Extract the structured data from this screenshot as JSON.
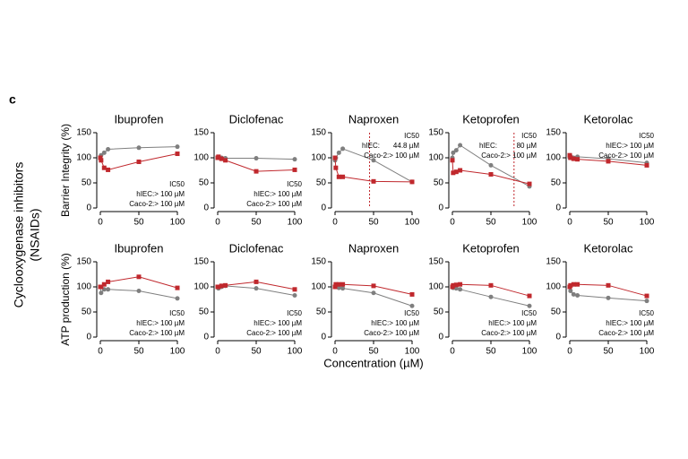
{
  "panel_label": "c",
  "group_label": [
    "Cyclooxygenase inhibitors",
    "(NSAIDs)"
  ],
  "x_label": "Concentration (µM)",
  "chart_data": [
    {
      "type": "line",
      "title": "Ibuprofen",
      "ylabel": "Barrier Integrity (%)",
      "x": [
        0,
        1,
        5,
        10,
        50,
        100
      ],
      "xlim": [
        0,
        100
      ],
      "xticks": [
        0,
        50,
        100
      ],
      "ylim": [
        0,
        150
      ],
      "yticks": [
        0,
        50,
        100,
        150
      ],
      "annotation_corner": "lower right",
      "series": [
        {
          "color": "#7f7f7f",
          "marker": "circle",
          "values": [
            100,
            105,
            110,
            117,
            120,
            122
          ]
        },
        {
          "color": "#c0282d",
          "marker": "square",
          "values": [
            100,
            95,
            80,
            76,
            92,
            108
          ]
        }
      ],
      "annotations": [
        {
          "text": "IC50",
          "color": "#000000"
        },
        {
          "text": "hIEC:> 100 µM",
          "color": "#c0282d"
        },
        {
          "text": "Caco-2:> 100 µM",
          "color": "#7f7f7f"
        }
      ]
    },
    {
      "type": "line",
      "title": "Diclofenac",
      "x": [
        0,
        1,
        5,
        10,
        50,
        100
      ],
      "xlim": [
        0,
        100
      ],
      "xticks": [
        0,
        50,
        100
      ],
      "ylim": [
        0,
        150
      ],
      "yticks": [
        0,
        50,
        100,
        150
      ],
      "annotation_corner": "lower right",
      "series": [
        {
          "color": "#7f7f7f",
          "marker": "circle",
          "values": [
            100,
            100,
            100,
            99,
            99,
            97
          ]
        },
        {
          "color": "#c0282d",
          "marker": "square",
          "values": [
            100,
            102,
            98,
            95,
            73,
            76
          ]
        }
      ],
      "annotations": [
        {
          "text": "IC50",
          "color": "#000000"
        },
        {
          "text": "hIEC:> 100 µM",
          "color": "#c0282d"
        },
        {
          "text": "Caco-2:> 100 µM",
          "color": "#7f7f7f"
        }
      ]
    },
    {
      "type": "line",
      "title": "Naproxen",
      "x": [
        0,
        1,
        5,
        10,
        50,
        100
      ],
      "xlim": [
        0,
        100
      ],
      "xticks": [
        0,
        50,
        100
      ],
      "ylim": [
        0,
        150
      ],
      "yticks": [
        0,
        50,
        100,
        150
      ],
      "annotation_corner": "upper right",
      "vlines": [
        44.8
      ],
      "series": [
        {
          "color": "#7f7f7f",
          "marker": "circle",
          "values": [
            95,
            100,
            110,
            118,
            95,
            52
          ]
        },
        {
          "color": "#c0282d",
          "marker": "square",
          "values": [
            100,
            80,
            62,
            62,
            53,
            52
          ]
        }
      ],
      "annotations": [
        {
          "text": "IC50",
          "color": "#000000"
        },
        {
          "text": "hIEC:",
          "text2": "44.8 µM",
          "color": "#c0282d"
        },
        {
          "text": "Caco-2:> 100 µM",
          "color": "#7f7f7f"
        }
      ]
    },
    {
      "type": "line",
      "title": "Ketoprofen",
      "x": [
        0,
        1,
        5,
        10,
        50,
        100
      ],
      "xlim": [
        0,
        100
      ],
      "xticks": [
        0,
        50,
        100
      ],
      "ylim": [
        0,
        150
      ],
      "yticks": [
        0,
        50,
        100,
        150
      ],
      "annotation_corner": "upper right",
      "vlines": [
        80
      ],
      "series": [
        {
          "color": "#7f7f7f",
          "marker": "circle",
          "values": [
            100,
            110,
            115,
            125,
            85,
            43
          ]
        },
        {
          "color": "#c0282d",
          "marker": "square",
          "values": [
            95,
            70,
            72,
            75,
            67,
            48
          ]
        }
      ],
      "annotations": [
        {
          "text": "IC50",
          "color": "#000000"
        },
        {
          "text": "hIEC:",
          "text2": "80 µM",
          "color": "#c0282d"
        },
        {
          "text": "Caco-2:> 100 µM",
          "color": "#7f7f7f"
        }
      ]
    },
    {
      "type": "line",
      "title": "Ketorolac",
      "x": [
        0,
        1,
        5,
        10,
        50,
        100
      ],
      "xlim": [
        0,
        100
      ],
      "xticks": [
        0,
        50,
        100
      ],
      "ylim": [
        0,
        150
      ],
      "yticks": [
        0,
        50,
        100,
        150
      ],
      "annotation_corner": "upper right",
      "series": [
        {
          "color": "#7f7f7f",
          "marker": "circle",
          "values": [
            100,
            103,
            100,
            102,
            98,
            90
          ]
        },
        {
          "color": "#c0282d",
          "marker": "square",
          "values": [
            105,
            100,
            98,
            97,
            93,
            85
          ]
        }
      ],
      "annotations": [
        {
          "text": "IC50",
          "color": "#000000"
        },
        {
          "text": "hIEC:> 100 µM",
          "color": "#c0282d"
        },
        {
          "text": "Caco-2:> 100 µM",
          "color": "#7f7f7f"
        }
      ]
    },
    {
      "type": "line",
      "title": "Ibuprofen",
      "ylabel": "ATP production (%)",
      "x": [
        0,
        1,
        5,
        10,
        50,
        100
      ],
      "xlim": [
        0,
        100
      ],
      "xticks": [
        0,
        50,
        100
      ],
      "ylim": [
        0,
        150
      ],
      "yticks": [
        0,
        50,
        100,
        150
      ],
      "annotation_corner": "lower right",
      "series": [
        {
          "color": "#7f7f7f",
          "marker": "circle",
          "values": [
            100,
            88,
            95,
            95,
            92,
            77
          ]
        },
        {
          "color": "#c0282d",
          "marker": "square",
          "values": [
            100,
            100,
            105,
            110,
            120,
            98
          ]
        }
      ],
      "annotations": [
        {
          "text": "IC50",
          "color": "#000000"
        },
        {
          "text": "hIEC:> 100 µM",
          "color": "#c0282d"
        },
        {
          "text": "Caco-2:> 100 µM",
          "color": "#7f7f7f"
        }
      ]
    },
    {
      "type": "line",
      "title": "Diclofenac",
      "x": [
        0,
        1,
        5,
        10,
        50,
        100
      ],
      "xlim": [
        0,
        100
      ],
      "xticks": [
        0,
        50,
        100
      ],
      "ylim": [
        0,
        150
      ],
      "yticks": [
        0,
        50,
        100,
        150
      ],
      "annotation_corner": "lower right",
      "series": [
        {
          "color": "#7f7f7f",
          "marker": "circle",
          "values": [
            100,
            97,
            100,
            102,
            97,
            83
          ]
        },
        {
          "color": "#c0282d",
          "marker": "square",
          "values": [
            100,
            100,
            102,
            103,
            110,
            95
          ]
        }
      ],
      "annotations": [
        {
          "text": "IC50",
          "color": "#000000"
        },
        {
          "text": "hIEC:> 100 µM",
          "color": "#c0282d"
        },
        {
          "text": "Caco-2:> 100 µM",
          "color": "#7f7f7f"
        }
      ]
    },
    {
      "type": "line",
      "title": "Naproxen",
      "x": [
        0,
        1,
        5,
        10,
        50,
        100
      ],
      "xlim": [
        0,
        100
      ],
      "xticks": [
        0,
        50,
        100
      ],
      "ylim": [
        0,
        150
      ],
      "yticks": [
        0,
        50,
        100,
        150
      ],
      "annotation_corner": "lower right",
      "series": [
        {
          "color": "#7f7f7f",
          "marker": "circle",
          "values": [
            100,
            100,
            98,
            97,
            88,
            62
          ]
        },
        {
          "color": "#c0282d",
          "marker": "square",
          "values": [
            100,
            105,
            105,
            105,
            102,
            85
          ]
        }
      ],
      "annotations": [
        {
          "text": "IC50",
          "color": "#000000"
        },
        {
          "text": "hIEC:> 100 µM",
          "color": "#c0282d"
        },
        {
          "text": "Caco-2:> 100 µM",
          "color": "#7f7f7f"
        }
      ]
    },
    {
      "type": "line",
      "title": "Ketoprofen",
      "x": [
        0,
        1,
        5,
        10,
        50,
        100
      ],
      "xlim": [
        0,
        100
      ],
      "xticks": [
        0,
        50,
        100
      ],
      "ylim": [
        0,
        150
      ],
      "yticks": [
        0,
        50,
        100,
        150
      ],
      "annotation_corner": "lower right",
      "series": [
        {
          "color": "#7f7f7f",
          "marker": "circle",
          "values": [
            100,
            98,
            97,
            95,
            80,
            62
          ]
        },
        {
          "color": "#c0282d",
          "marker": "square",
          "values": [
            100,
            103,
            104,
            105,
            103,
            82
          ]
        }
      ],
      "annotations": [
        {
          "text": "IC50",
          "color": "#000000"
        },
        {
          "text": "hIEC:> 100 µM",
          "color": "#c0282d"
        },
        {
          "text": "Caco-2:> 100 µM",
          "color": "#7f7f7f"
        }
      ]
    },
    {
      "type": "line",
      "title": "Ketorolac",
      "x": [
        0,
        1,
        5,
        10,
        50,
        100
      ],
      "xlim": [
        0,
        100
      ],
      "xticks": [
        0,
        50,
        100
      ],
      "ylim": [
        0,
        150
      ],
      "yticks": [
        0,
        50,
        100,
        150
      ],
      "annotation_corner": "lower right",
      "series": [
        {
          "color": "#7f7f7f",
          "marker": "circle",
          "values": [
            100,
            92,
            85,
            83,
            78,
            72
          ]
        },
        {
          "color": "#c0282d",
          "marker": "square",
          "values": [
            100,
            103,
            105,
            105,
            103,
            82
          ]
        }
      ],
      "annotations": [
        {
          "text": "IC50",
          "color": "#000000"
        },
        {
          "text": "hIEC:> 100 µM",
          "color": "#c0282d"
        },
        {
          "text": "Caco-2:> 100 µM",
          "color": "#7f7f7f"
        }
      ]
    }
  ]
}
